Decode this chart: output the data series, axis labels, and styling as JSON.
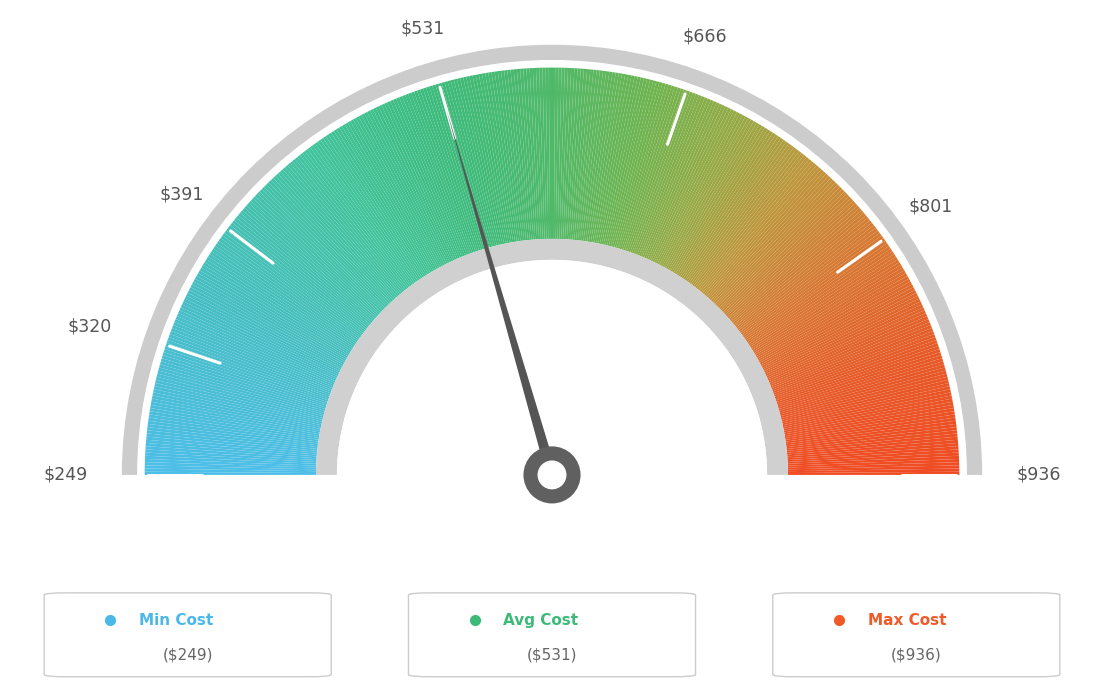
{
  "min_val": 249,
  "max_val": 936,
  "avg_val": 531,
  "tick_labels": [
    "$249",
    "$320",
    "$391",
    "$531",
    "$666",
    "$801",
    "$936"
  ],
  "tick_values": [
    249,
    320,
    391,
    531,
    666,
    801,
    936
  ],
  "legend_items": [
    {
      "label": "Min Cost",
      "value": "($249)",
      "color": "#4ab8e8"
    },
    {
      "label": "Avg Cost",
      "value": "($531)",
      "color": "#3dba7a"
    },
    {
      "label": "Max Cost",
      "value": "($936)",
      "color": "#f05a28"
    }
  ],
  "needle_value": 531,
  "background_color": "#ffffff",
  "color_stops": [
    [
      0.0,
      [
        77,
        190,
        232
      ]
    ],
    [
      0.15,
      [
        70,
        190,
        195
      ]
    ],
    [
      0.3,
      [
        65,
        195,
        155
      ]
    ],
    [
      0.41,
      [
        61,
        186,
        122
      ]
    ],
    [
      0.5,
      [
        80,
        185,
        105
      ]
    ],
    [
      0.58,
      [
        110,
        180,
        80
      ]
    ],
    [
      0.65,
      [
        150,
        170,
        70
      ]
    ],
    [
      0.72,
      [
        190,
        150,
        60
      ]
    ],
    [
      0.8,
      [
        215,
        120,
        50
      ]
    ],
    [
      0.9,
      [
        230,
        90,
        40
      ]
    ],
    [
      1.0,
      [
        240,
        75,
        35
      ]
    ]
  ]
}
